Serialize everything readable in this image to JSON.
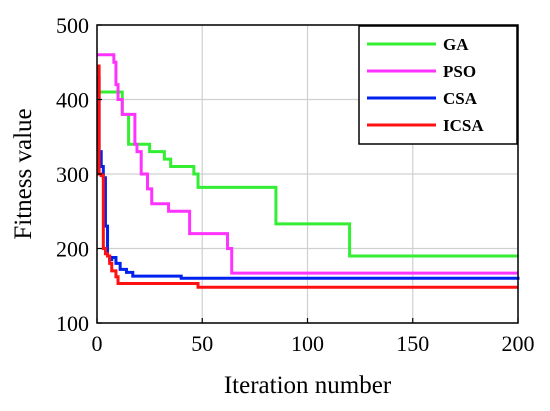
{
  "chart_data": {
    "type": "line",
    "xlabel": "Iteration number",
    "ylabel": "Fitness value",
    "xlim": [
      0,
      200
    ],
    "ylim": [
      100,
      500
    ],
    "xticks": [
      0,
      50,
      100,
      150,
      200
    ],
    "yticks": [
      100,
      200,
      300,
      400,
      500
    ],
    "grid": true,
    "legend_position": "top-right",
    "series": [
      {
        "name": "GA",
        "color": "#33ee33",
        "x": [
          0,
          1,
          10,
          12,
          15,
          22,
          25,
          32,
          35,
          46,
          48,
          83,
          85,
          118,
          120,
          200
        ],
        "y": [
          410,
          410,
          410,
          380,
          340,
          340,
          330,
          320,
          310,
          300,
          282,
          282,
          233,
          233,
          190,
          190
        ]
      },
      {
        "name": "PSO",
        "color": "#ff33ff",
        "x": [
          0,
          7,
          8,
          9,
          10,
          12,
          18,
          19,
          21,
          24,
          26,
          31,
          34,
          44,
          46,
          60,
          62,
          64,
          200
        ],
        "y": [
          460,
          460,
          450,
          420,
          400,
          380,
          340,
          330,
          300,
          280,
          260,
          260,
          250,
          220,
          220,
          220,
          200,
          167,
          167
        ]
      },
      {
        "name": "CSA",
        "color": "#0022ee",
        "x": [
          0,
          1,
          2,
          3,
          4,
          5,
          6,
          7,
          9,
          11,
          14,
          17,
          30,
          40,
          50,
          200
        ],
        "y": [
          430,
          330,
          310,
          295,
          230,
          190,
          185,
          188,
          180,
          172,
          168,
          163,
          163,
          160,
          160,
          158
        ]
      },
      {
        "name": "ICSA",
        "color": "#ff1111",
        "x": [
          0,
          1,
          2,
          3,
          4,
          5,
          6,
          7,
          9,
          10,
          30,
          40,
          48,
          50,
          200
        ],
        "y": [
          445,
          300,
          298,
          200,
          193,
          190,
          180,
          170,
          162,
          153,
          153,
          153,
          148,
          148,
          148
        ]
      }
    ]
  }
}
